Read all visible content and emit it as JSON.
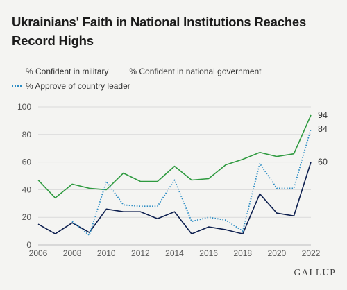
{
  "chart_data": {
    "type": "line",
    "title": "Ukrainians' Faith in National Institutions Reaches Record Highs",
    "xlabel": "",
    "ylabel": "",
    "x": [
      2006,
      2007,
      2008,
      2009,
      2010,
      2011,
      2012,
      2013,
      2014,
      2015,
      2016,
      2017,
      2018,
      2019,
      2020,
      2021,
      2022
    ],
    "xticks": [
      2006,
      2008,
      2010,
      2012,
      2014,
      2016,
      2018,
      2020,
      2022
    ],
    "yticks": [
      0,
      20,
      40,
      60,
      80,
      100
    ],
    "ylim": [
      0,
      100
    ],
    "xlim": [
      2006,
      2022
    ],
    "grid": "horizontal",
    "legend_position": "top-left",
    "series": [
      {
        "name": "% Confident in military",
        "color": "#2e9a3f",
        "style": "solid",
        "values": [
          47,
          34,
          44,
          41,
          40,
          52,
          46,
          46,
          57,
          47,
          48,
          58,
          62,
          67,
          64,
          66,
          94
        ],
        "end_label": "94"
      },
      {
        "name": "% Confident in national government",
        "color": "#0d1f4f",
        "style": "solid",
        "values": [
          15,
          8,
          16,
          9,
          26,
          24,
          24,
          19,
          24,
          8,
          13,
          11,
          8,
          37,
          23,
          21,
          60
        ],
        "end_label": "60"
      },
      {
        "name": "% Approve of country leader",
        "color": "#2b8cc4",
        "style": "dotted",
        "values": [
          null,
          null,
          17,
          7,
          46,
          29,
          28,
          28,
          47,
          17,
          20,
          18,
          10,
          59,
          41,
          41,
          84
        ],
        "end_label": "84"
      }
    ]
  },
  "source": "GALLUP"
}
